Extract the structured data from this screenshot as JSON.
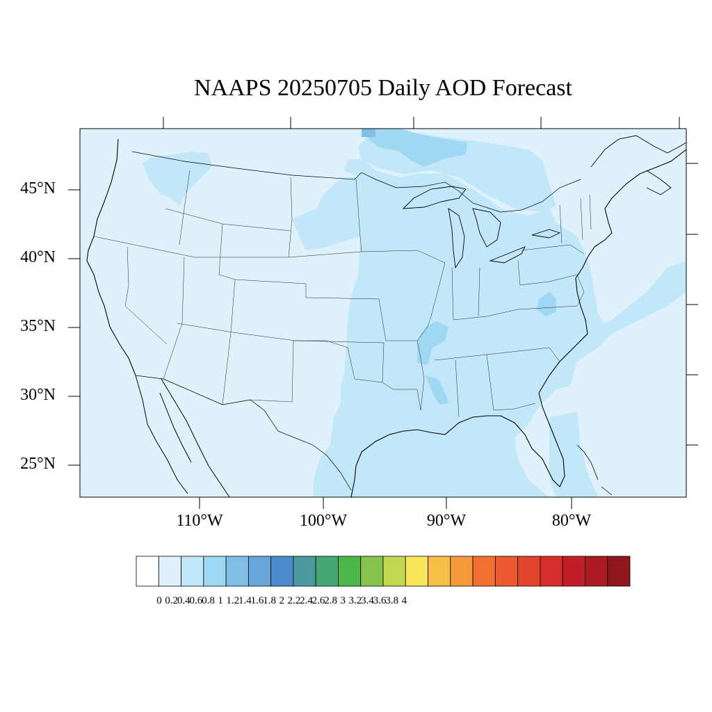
{
  "title": "NAAPS 20250705 Daily AOD Forecast",
  "map": {
    "extent": {
      "lon_min": -119,
      "lon_max": -70,
      "lat_min": 22.7,
      "lat_max": 49.4
    },
    "lat_labels": [
      "45°N",
      "40°N",
      "35°N",
      "30°N",
      "25°N"
    ],
    "lat_values": [
      45,
      40,
      35,
      30,
      25
    ],
    "lon_labels": [
      "110°W",
      "100°W",
      "90°W",
      "80°W"
    ],
    "lon_values": [
      -110,
      -100,
      -90,
      -80
    ],
    "background_color": "#dff2fb",
    "aod_regions": [
      {
        "name": "central-plains-mississippi-valley",
        "level": "0.2-0.4"
      },
      {
        "name": "gulf-coast-and-western-gulf",
        "level": "0.2-0.4"
      },
      {
        "name": "northern-plains",
        "level": "0.2-0.4"
      },
      {
        "name": "northern-minnesota-ontario",
        "level": "0.4-0.6"
      },
      {
        "name": "great-lakes-northern-ontario",
        "level": "0.2-0.4"
      },
      {
        "name": "western-atlantic-plume",
        "level": "0.2-0.4"
      },
      {
        "name": "lower-mississippi-valley",
        "level": "0.4-0.6"
      },
      {
        "name": "pacific-northwest",
        "level": "0.2-0.4"
      }
    ]
  },
  "colorbar": {
    "labels": [
      "0",
      "0.2",
      "0.4",
      "0.6",
      "0.8",
      "1",
      "1.2",
      "1.4",
      "1.6",
      "1.8",
      "2",
      "2.2",
      "2.4",
      "2.6",
      "2.8",
      "3",
      "3.2",
      "3.4",
      "3.6",
      "3.8",
      "4"
    ],
    "colors": [
      "#ffffff",
      "#dff2fb",
      "#c1e7f8",
      "#9fd8f3",
      "#82bde6",
      "#67a6da",
      "#4b8bc9",
      "#4b9aa0",
      "#45a874",
      "#4cb748",
      "#86c44e",
      "#c3d652",
      "#f8e55a",
      "#f8bf48",
      "#f6993c",
      "#f27130",
      "#ec5b2f",
      "#e1452d",
      "#d62e2b",
      "#c11f27",
      "#aa1b22",
      "#8f161c"
    ]
  }
}
